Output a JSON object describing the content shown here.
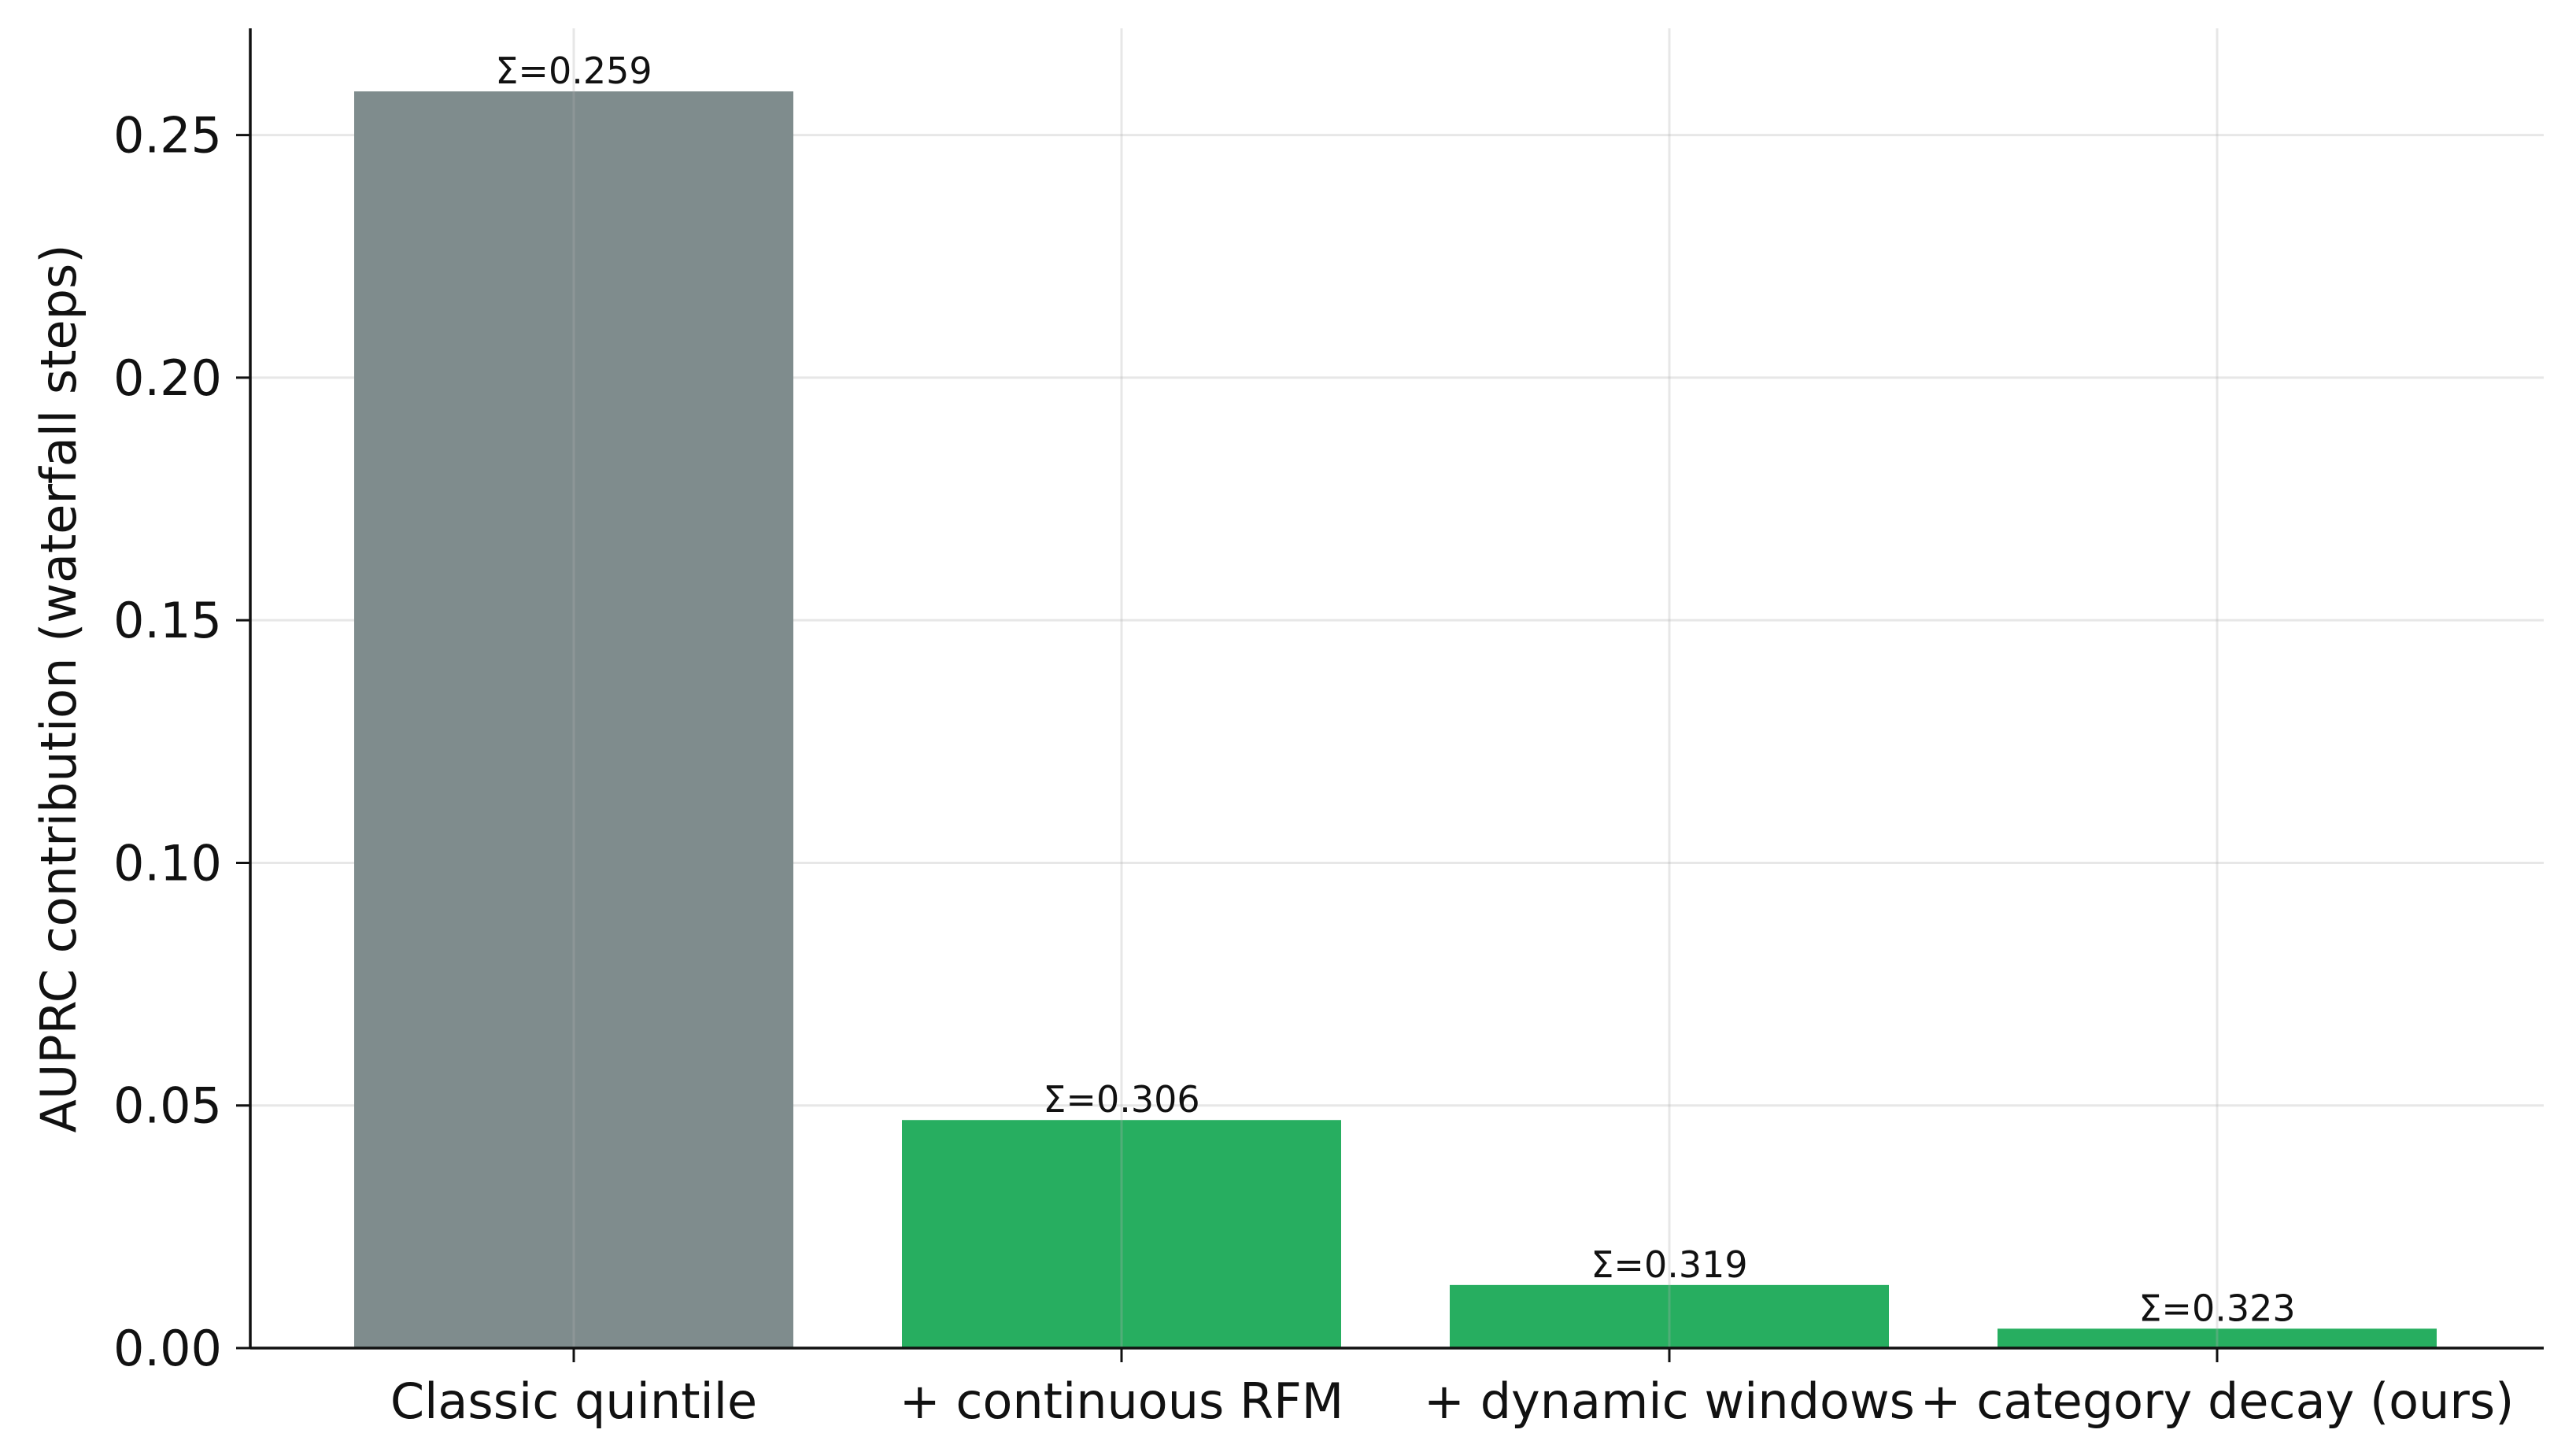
{
  "chart_data": {
    "type": "bar",
    "title": "",
    "xlabel": "",
    "ylabel": "AUPRC contribution (waterfall steps)",
    "categories": [
      "Classic quintile",
      "+ continuous RFM",
      "+ dynamic windows",
      "+ category decay (ours)"
    ],
    "values": [
      0.259,
      0.047,
      0.013,
      0.004
    ],
    "cumulative_labels": [
      "Σ=0.259",
      "Σ=0.306",
      "Σ=0.319",
      "Σ=0.323"
    ],
    "colors": [
      "#7f8c8d",
      "#27ae60",
      "#27ae60",
      "#27ae60"
    ],
    "ylim": [
      0,
      0.272
    ],
    "yticks": [
      0.0,
      0.05,
      0.1,
      0.15,
      0.2,
      0.25
    ],
    "ytick_labels": [
      "0.00",
      "0.05",
      "0.10",
      "0.15",
      "0.20",
      "0.25"
    ],
    "grid": true,
    "legend": "none"
  }
}
